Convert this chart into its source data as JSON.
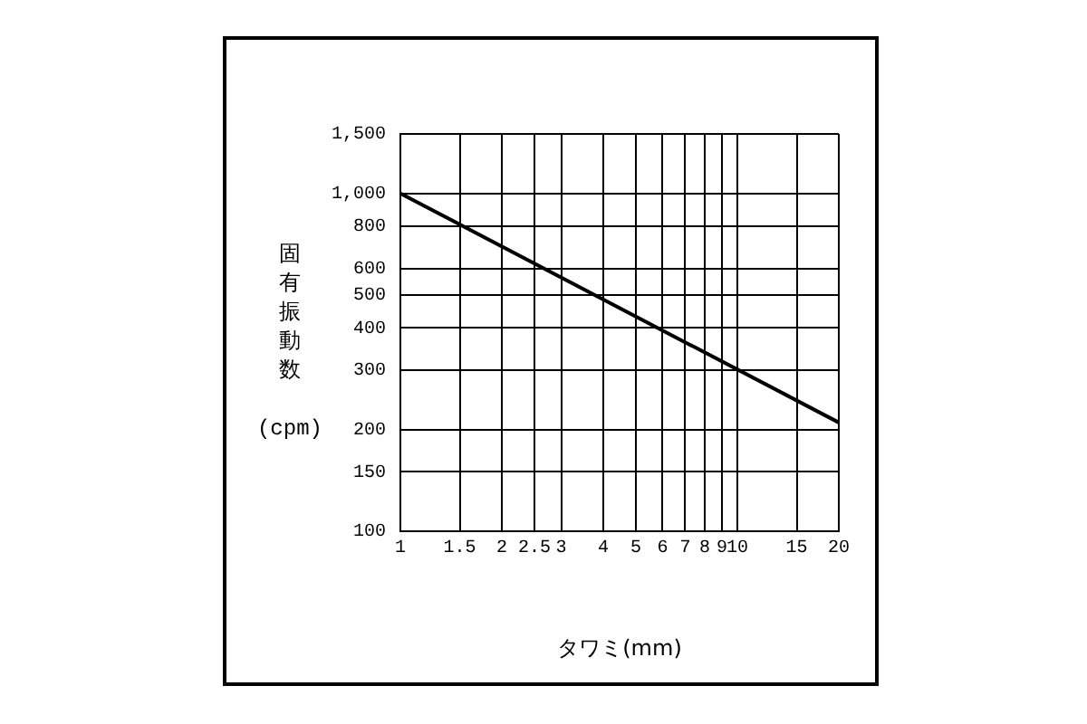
{
  "chart_data": {
    "type": "line",
    "xlabel": "タワミ(mm)",
    "ylabel": "固有振動数 (cpm)",
    "log": "xy",
    "grid": true,
    "marker": "none",
    "line_style": "solid",
    "x": [
      1,
      20
    ],
    "series": [
      {
        "color": "#000000",
        "values": [
          1000,
          210
        ]
      }
    ],
    "xlim": [
      1,
      20
    ],
    "xticks": [
      1,
      1.5,
      2,
      2.5,
      3,
      4,
      5,
      6,
      7,
      8,
      9,
      10,
      15,
      20
    ],
    "ylim": [
      100,
      1500
    ],
    "yticks": [
      100,
      150,
      200,
      300,
      400,
      500,
      600,
      800,
      {
        "value": 1000,
        "label": "1,000"
      },
      {
        "value": 1500,
        "label": "1,500"
      }
    ]
  }
}
